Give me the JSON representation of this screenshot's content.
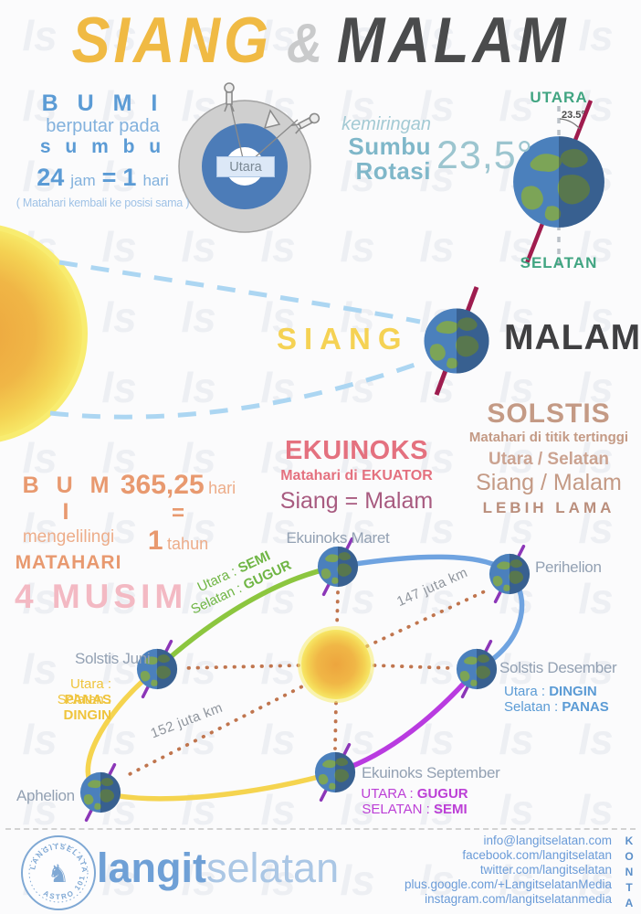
{
  "title": {
    "siang": "SIANG",
    "amp": "&",
    "malam": "MALAM"
  },
  "rotation": {
    "heading": "B U M I",
    "line1": "berputar pada",
    "line2": "s u m b u",
    "n24": "24",
    "jam": "jam",
    "eq": "=",
    "n1": "1",
    "hari": "hari",
    "note": "( Matahari kembali ke posisi sama )",
    "hub_label": "Utara"
  },
  "tilt": {
    "lead": "kemiringan",
    "word1": "Sumbu",
    "word2": "Rotasi",
    "value": "23,5°"
  },
  "axis_earth": {
    "north": "UTARA",
    "angle": "23.5°",
    "south": "SELATAN"
  },
  "day_night": {
    "day": "SIANG",
    "night": "MALAM"
  },
  "solstis": {
    "heading": "SOLSTIS",
    "line1": "Matahari di titik tertinggi",
    "line2": "Utara / Selatan",
    "line3": "Siang / Malam",
    "line4": "LEBIH LAMA"
  },
  "ekuinoks": {
    "heading": "EKUINOKS",
    "line1": "Matahari di EKUATOR",
    "line2": "Siang = Malam"
  },
  "revolution": {
    "heading": "B U M I",
    "line1": "mengelilingi",
    "line2": "MATAHARI",
    "days": "365,25",
    "days_unit": "hari",
    "eq": "=",
    "years": "1",
    "years_unit": "tahun"
  },
  "musim_title": "4 MUSIM",
  "orbit": {
    "ekuinoks_maret": "Ekuinoks Maret",
    "perihelion": "Perihelion",
    "solstis_desember": "Solstis Desember",
    "sd_north_label": "Utara :",
    "sd_north_value": "DINGIN",
    "sd_south_label": "Selatan :",
    "sd_south_value": "PANAS",
    "solstis_juni": "Solstis Juni",
    "sj_north_label": "Utara :",
    "sj_north_value": "PANAS",
    "sj_south_label": "Selatan :",
    "sj_south_value": "DINGIN",
    "aphelion": "Aphelion",
    "ekuinoks_september": "Ekuinoks September",
    "es_north_label": "UTARA :",
    "es_north_value": "GUGUR",
    "es_south_label": "SELATAN :",
    "es_south_value": "SEMI",
    "green_north_label": "Utara :",
    "green_north_value": "SEMI",
    "green_south_label": "Selatan :",
    "green_south_value": "GUGUR",
    "dist_perihelion": "147 juta km",
    "dist_aphelion": "152 juta km"
  },
  "footer": {
    "brand_bold": "langit",
    "brand_light": "selatan",
    "stamp_top": "LANGITSELATAN",
    "stamp_bottom": "ASTRO 101",
    "stamp_glyph": "♞",
    "contacts": [
      "info@langitselatan.com",
      "facebook.com/langitselatan",
      "twitter.com/langitselatan",
      "plus.google.com/+LangitselatanMedia",
      "instagram.com/langitselatanmedia"
    ],
    "kontak": "KONTAK"
  },
  "colors": {
    "title_yellow": "#F0BA44",
    "title_dark": "#4A4B4C",
    "blue": "#5B9BD5",
    "teal": "#9CC5CF",
    "green_axis": "#41A582",
    "maroon_axis": "#9E1D4F",
    "purple_axis": "#8C36B8",
    "tan": "#C49A85",
    "pink": "#E4717F",
    "salmon": "#E8996F",
    "orbit_green": "#8CC63F",
    "orbit_blue": "#6FA3E0",
    "orbit_purple": "#B93BE0",
    "orbit_yellow": "#F5D44F",
    "dotted_line": "#C0754E",
    "footer_blue": "#6A9BD8"
  }
}
